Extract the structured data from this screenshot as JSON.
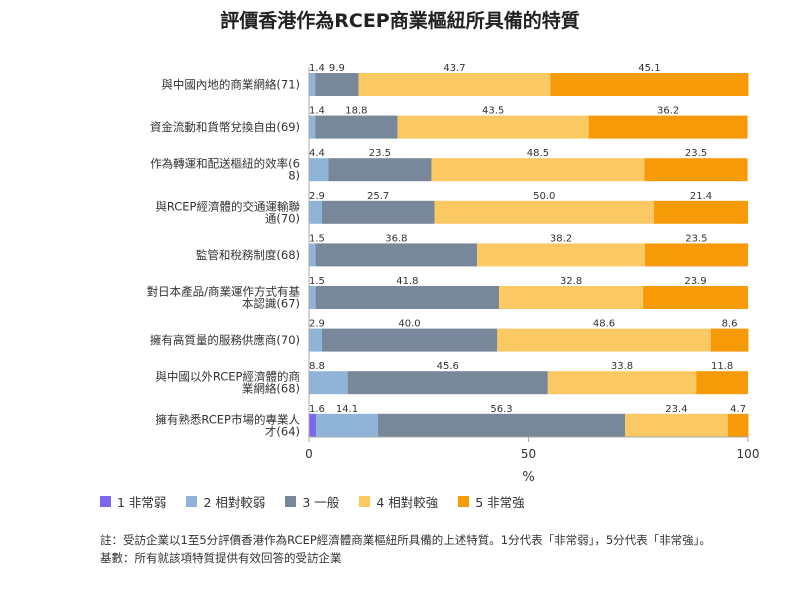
{
  "chart_data": {
    "type": "bar",
    "stacked": true,
    "orientation": "horizontal",
    "title": "評價香港作為RCEP商業樞紐所具備的特質",
    "xlabel": "%",
    "xlim": [
      0,
      100
    ],
    "xticks": [
      "0",
      "50",
      "100"
    ],
    "grid": false,
    "legend_position": "bottom",
    "categories": [
      [
        "與中國內地的商業網絡(71)"
      ],
      [
        "資金流動和貨幣兌換自由(69)"
      ],
      [
        "作為轉運和配送樞紐的效率(6",
        "8)"
      ],
      [
        "與RCEP經濟體的交通運輸聯",
        "通(70)"
      ],
      [
        "監管和稅務制度(68)"
      ],
      [
        "對日本產品/商業運作方式有基",
        "本認識(67)"
      ],
      [
        "擁有高質量的服務供應商(70)"
      ],
      [
        "與中國以外RCEP經濟體的商",
        "業網絡(68)"
      ],
      [
        "擁有熟悉RCEP市場的專業人",
        "才(64)"
      ]
    ],
    "series": [
      {
        "name": "1 非常弱",
        "color": "#7b68ee",
        "values": [
          0,
          0,
          0,
          0,
          0,
          0,
          0,
          0,
          1.6
        ]
      },
      {
        "name": "2 相對較弱",
        "color": "#8fb4d8",
        "values": [
          1.4,
          1.4,
          4.4,
          2.9,
          1.5,
          1.5,
          2.9,
          8.8,
          14.1
        ]
      },
      {
        "name": "3 一般",
        "color": "#78889a",
        "values": [
          9.9,
          18.8,
          23.5,
          25.7,
          36.8,
          41.8,
          40.0,
          45.6,
          56.3
        ]
      },
      {
        "name": "4 相對較強",
        "color": "#fbc964",
        "values": [
          43.7,
          43.5,
          48.5,
          50.0,
          38.2,
          32.8,
          48.6,
          33.8,
          23.4
        ]
      },
      {
        "name": "5 非常強",
        "color": "#f79a07",
        "values": [
          45.1,
          36.2,
          23.5,
          21.4,
          23.5,
          23.9,
          8.6,
          11.8,
          4.7
        ]
      }
    ],
    "footnotes": [
      "註：受訪企業以1至5分評價香港作為RCEP經濟體商業樞紐所具備的上述特質。1分代表「非常弱」，5分代表「非常強」。",
      "基數：所有就該項特質提供有效回答的受訪企業"
    ]
  }
}
